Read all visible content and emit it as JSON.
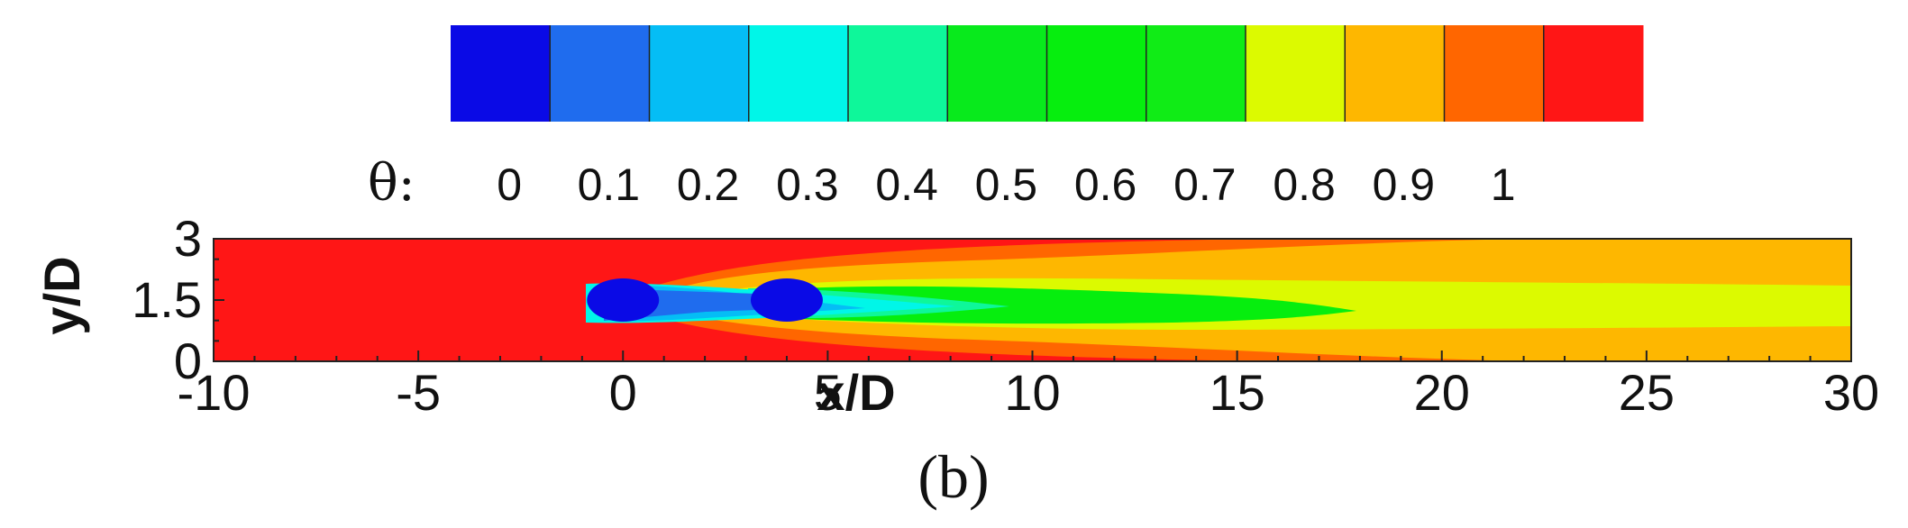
{
  "chart_data": {
    "type": "heatmap",
    "field_variable": "θ",
    "colorbar": {
      "label": "θ:",
      "ticks": [
        "0",
        "0.1",
        "0.2",
        "0.3",
        "0.4",
        "0.5",
        "0.6",
        "0.7",
        "0.8",
        "0.9",
        "1"
      ],
      "colors": [
        "#0a0ae6",
        "#1f6cee",
        "#05bdf5",
        "#00f6e8",
        "#0ef79a",
        "#08ea1c",
        "#06ee0e",
        "#10ec16",
        "#dcfa00",
        "#feb700",
        "#ff6600",
        "#ff1616"
      ]
    },
    "x": {
      "label": "x/D",
      "range": [
        -10,
        30
      ],
      "ticks": [
        "-10",
        "-5",
        "0",
        "5",
        "10",
        "15",
        "20",
        "25",
        "30"
      ]
    },
    "y": {
      "label": "y/D",
      "range": [
        0,
        3
      ],
      "ticks": [
        "0",
        "1.5",
        "3"
      ]
    },
    "cylinders": [
      {
        "x": 0,
        "y": 1.5
      },
      {
        "x": 4,
        "y": 1.5
      }
    ],
    "panel_label": "(b)"
  }
}
